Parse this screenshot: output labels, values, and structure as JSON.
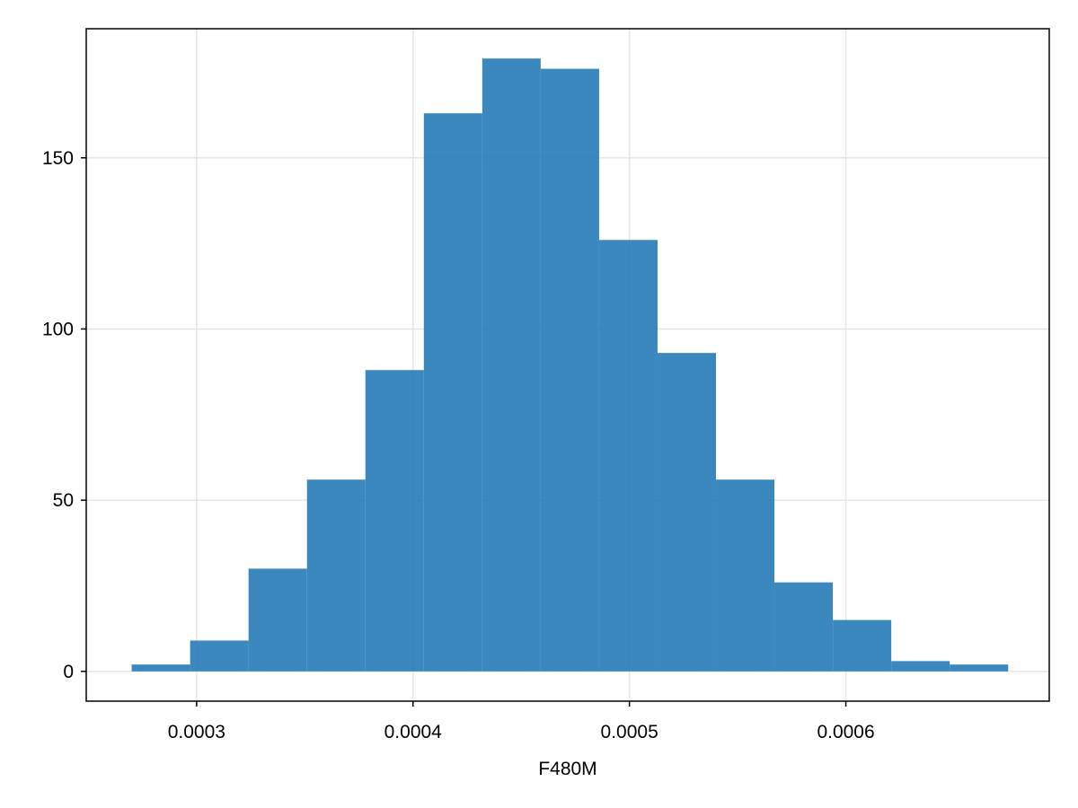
{
  "chart_data": {
    "type": "bar",
    "title": "",
    "xlabel": "F480M",
    "ylabel": "",
    "bins": [
      {
        "x0": 0.00027,
        "x1": 0.000297,
        "count": 2
      },
      {
        "x0": 0.000297,
        "x1": 0.000324,
        "count": 9
      },
      {
        "x0": 0.000324,
        "x1": 0.000351,
        "count": 30
      },
      {
        "x0": 0.000351,
        "x1": 0.000378,
        "count": 56
      },
      {
        "x0": 0.000378,
        "x1": 0.000405,
        "count": 88
      },
      {
        "x0": 0.000405,
        "x1": 0.000432,
        "count": 163
      },
      {
        "x0": 0.000432,
        "x1": 0.000459,
        "count": 179
      },
      {
        "x0": 0.000459,
        "x1": 0.000486,
        "count": 176
      },
      {
        "x0": 0.000486,
        "x1": 0.000513,
        "count": 126
      },
      {
        "x0": 0.000513,
        "x1": 0.00054,
        "count": 93
      },
      {
        "x0": 0.00054,
        "x1": 0.000567,
        "count": 56
      },
      {
        "x0": 0.000567,
        "x1": 0.000594,
        "count": 26
      },
      {
        "x0": 0.000594,
        "x1": 0.000621,
        "count": 15
      },
      {
        "x0": 0.000621,
        "x1": 0.000648,
        "count": 3
      },
      {
        "x0": 0.000648,
        "x1": 0.000675,
        "count": 2
      }
    ],
    "xlim": [
      0.000249,
      0.000694
    ],
    "ylim": [
      -8.7,
      187.7
    ],
    "xticks": [
      {
        "value": 0.0003,
        "label": "0.0003"
      },
      {
        "value": 0.0004,
        "label": "0.0004"
      },
      {
        "value": 0.0005,
        "label": "0.0005"
      },
      {
        "value": 0.0006,
        "label": "0.0006"
      }
    ],
    "yticks": [
      {
        "value": 0,
        "label": "0"
      },
      {
        "value": 50,
        "label": "50"
      },
      {
        "value": 100,
        "label": "100"
      },
      {
        "value": 150,
        "label": "150"
      }
    ],
    "grid": true,
    "bar_color": "#1f78b4",
    "bar_opacity": 0.88,
    "grid_color": "#e6e6e6",
    "legend": "none"
  }
}
